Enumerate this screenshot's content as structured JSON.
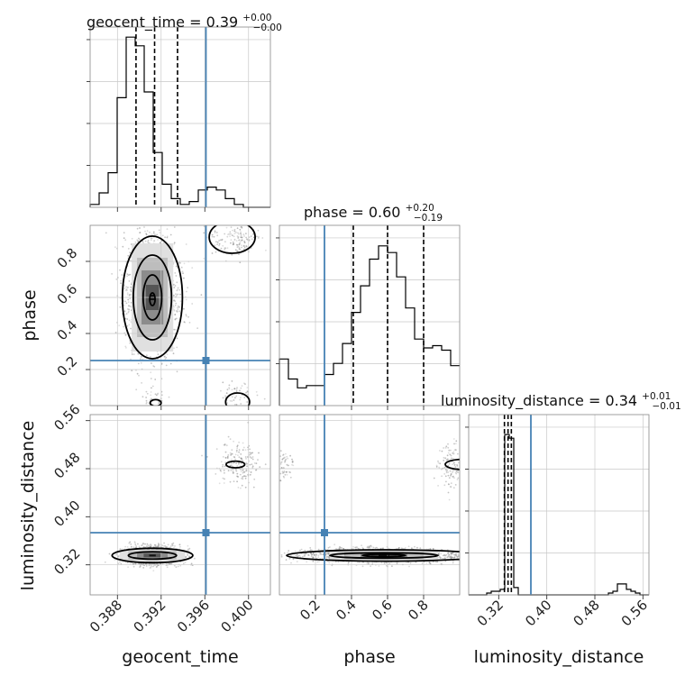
{
  "chart_data": {
    "type": "corner",
    "parameters": [
      {
        "name": "geocent_time",
        "title": "geocent_time = 0.39",
        "title_plus": "+0.00",
        "title_minus": "−0.00",
        "range": [
          0.3855,
          0.402
        ],
        "ticks": [
          0.388,
          0.392,
          0.396,
          0.4
        ],
        "tick_labels": [
          "0.388",
          "0.392",
          "0.396",
          "0.400"
        ],
        "truth": 0.3961,
        "quantiles": [
          0.3897,
          0.3914,
          0.3935
        ],
        "hist_edges_start": 0.3855,
        "hist_bin_width": 0.000825,
        "hist_counts": [
          1,
          5,
          12,
          38,
          59,
          56,
          40,
          19,
          8,
          3,
          1,
          2,
          6,
          7,
          6,
          3,
          1,
          0,
          0,
          0
        ],
        "hist_max": 60
      },
      {
        "name": "phase",
        "title": "phase = 0.60",
        "title_plus": "+0.20",
        "title_minus": "−0.19",
        "range": [
          0.0,
          1.0
        ],
        "ticks": [
          0.2,
          0.4,
          0.6,
          0.8
        ],
        "tick_labels": [
          "0.2",
          "0.4",
          "0.6",
          "0.8"
        ],
        "truth": 0.25,
        "quantiles": [
          0.41,
          0.6,
          0.8
        ],
        "hist_edges_start": 0.0,
        "hist_bin_width": 0.05,
        "hist_counts": [
          21,
          12,
          8,
          9,
          9,
          14,
          19,
          28,
          42,
          54,
          66,
          72,
          69,
          58,
          44,
          30,
          26,
          27,
          25,
          18
        ],
        "hist_max": 78
      },
      {
        "name": "luminosity_distance",
        "title": "luminosity_distance = 0.34",
        "title_plus": "+0.01",
        "title_minus": "−0.01",
        "range": [
          0.27,
          0.57
        ],
        "ticks": [
          0.32,
          0.4,
          0.48,
          0.56
        ],
        "tick_labels": [
          "0.32",
          "0.40",
          "0.48",
          "0.56"
        ],
        "truth": 0.3735,
        "quantiles": [
          0.3295,
          0.3355,
          0.341
        ],
        "hist_edges_start": 0.27,
        "hist_bin_width": 0.0075,
        "hist_counts": [
          0,
          0,
          0,
          0,
          1,
          2,
          2,
          3,
          88,
          86,
          4,
          0,
          0,
          0,
          0,
          0,
          0,
          0,
          0,
          0,
          0,
          0,
          0,
          0,
          0,
          0,
          0,
          0,
          0,
          0,
          0,
          1,
          2,
          6,
          6,
          3,
          2,
          1,
          0,
          0
        ],
        "hist_max": 95
      }
    ],
    "axis_labels": [
      "geocent_time",
      "phase",
      "luminosity_distance"
    ],
    "truth_color": "#4682b4",
    "sample_color": "#888888",
    "contour_color": "#000000",
    "density_levels": [
      "#e0e0e0",
      "#bdbdbd",
      "#8c8c8c",
      "#555555",
      "#111111"
    ],
    "grid": true
  }
}
